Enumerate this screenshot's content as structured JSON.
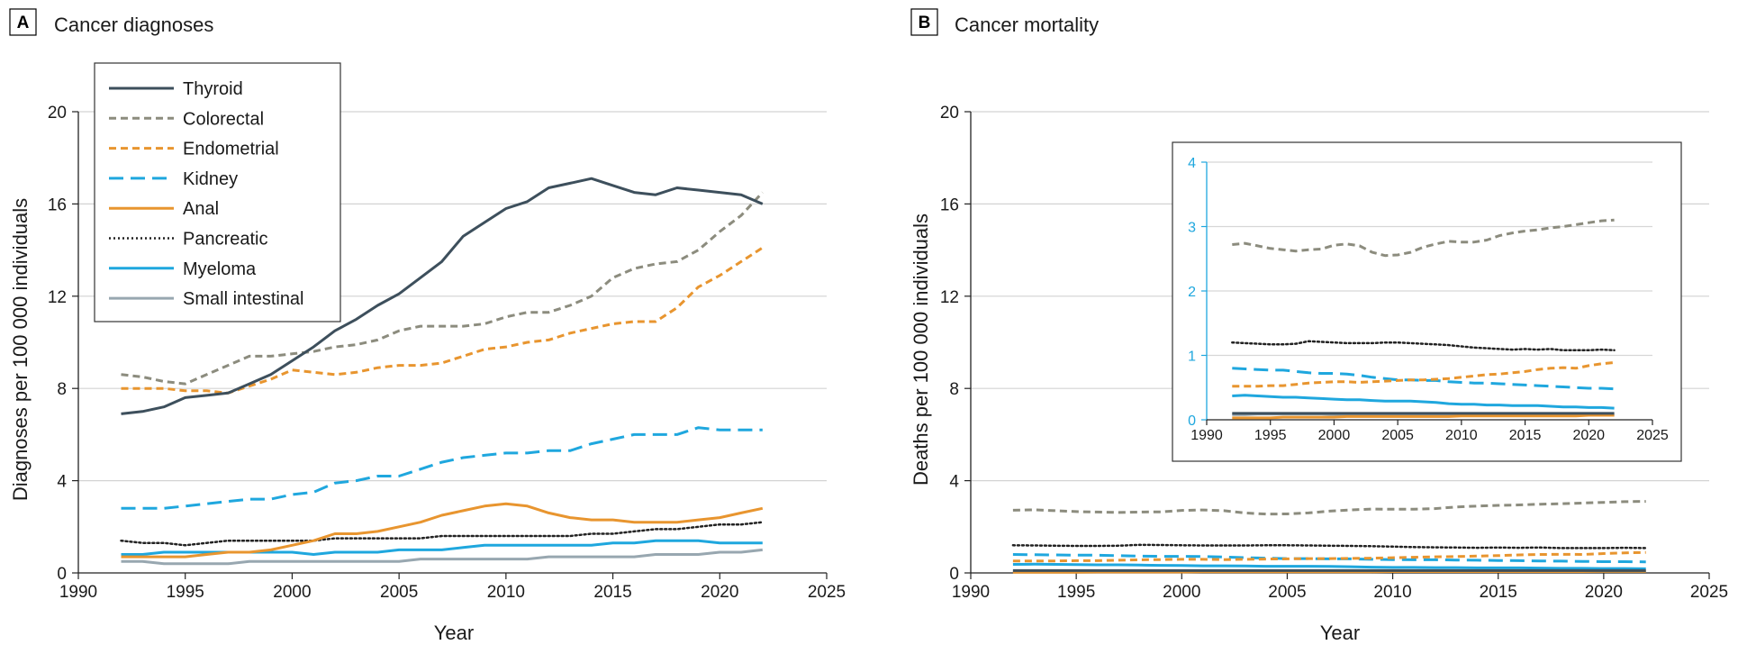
{
  "series_styles": [
    {
      "name": "Thyroid",
      "color": "#3d4f5c",
      "dash": "solid",
      "width": 3
    },
    {
      "name": "Colorectal",
      "color": "#8c8c7e",
      "dash": "dash",
      "width": 3
    },
    {
      "name": "Endometrial",
      "color": "#e8952f",
      "dash": "dash",
      "width": 3
    },
    {
      "name": "Kidney",
      "color": "#1fa7de",
      "dash": "longdash",
      "width": 3
    },
    {
      "name": "Anal",
      "color": "#e8952f",
      "dash": "solid",
      "width": 3
    },
    {
      "name": "Pancreatic",
      "color": "#222222",
      "dash": "dot",
      "width": 2.5
    },
    {
      "name": "Myeloma",
      "color": "#1fa7de",
      "dash": "solid",
      "width": 3
    },
    {
      "name": "Small intestinal",
      "color": "#98a7b0",
      "dash": "solid",
      "width": 3
    }
  ],
  "chart_data": [
    {
      "type": "line",
      "panel": "A",
      "title": "Cancer diagnoses",
      "xlabel": "Year",
      "ylabel": "Diagnoses per 100 000 individuals",
      "xlim": [
        1990,
        2025
      ],
      "ylim": [
        0,
        20
      ],
      "xticks": [
        1990,
        1995,
        2000,
        2005,
        2010,
        2015,
        2020,
        2025
      ],
      "yticks": [
        0,
        4,
        8,
        12,
        16,
        20
      ],
      "grid": "horizontal",
      "legend": "top-left",
      "x": [
        1992,
        1993,
        1994,
        1995,
        1996,
        1997,
        1998,
        1999,
        2000,
        2001,
        2002,
        2003,
        2004,
        2005,
        2006,
        2007,
        2008,
        2009,
        2010,
        2011,
        2012,
        2013,
        2014,
        2015,
        2016,
        2017,
        2018,
        2019,
        2020,
        2021,
        2022
      ],
      "series": [
        {
          "name": "Thyroid",
          "values": [
            6.9,
            7.0,
            7.2,
            7.6,
            7.7,
            7.8,
            8.2,
            8.6,
            9.2,
            9.8,
            10.5,
            11.0,
            11.6,
            12.1,
            12.8,
            13.5,
            14.6,
            15.2,
            15.8,
            16.1,
            16.7,
            16.9,
            17.1,
            16.8,
            16.5,
            16.4,
            16.7,
            16.6,
            16.5,
            16.4,
            16.0
          ]
        },
        {
          "name": "Colorectal",
          "values": [
            8.6,
            8.5,
            8.3,
            8.2,
            8.6,
            9.0,
            9.4,
            9.4,
            9.5,
            9.6,
            9.8,
            9.9,
            10.1,
            10.5,
            10.7,
            10.7,
            10.7,
            10.8,
            11.1,
            11.3,
            11.3,
            11.6,
            12.0,
            12.8,
            13.2,
            13.4,
            13.5,
            14.0,
            14.8,
            15.5,
            16.5
          ]
        },
        {
          "name": "Endometrial",
          "values": [
            8.0,
            8.0,
            8.0,
            7.9,
            7.9,
            7.8,
            8.1,
            8.4,
            8.8,
            8.7,
            8.6,
            8.7,
            8.9,
            9.0,
            9.0,
            9.1,
            9.4,
            9.7,
            9.8,
            10.0,
            10.1,
            10.4,
            10.6,
            10.8,
            10.9,
            10.9,
            11.5,
            12.4,
            12.9,
            13.5,
            14.1
          ]
        },
        {
          "name": "Kidney",
          "values": [
            2.8,
            2.8,
            2.8,
            2.9,
            3.0,
            3.1,
            3.2,
            3.2,
            3.4,
            3.5,
            3.9,
            4.0,
            4.2,
            4.2,
            4.5,
            4.8,
            5.0,
            5.1,
            5.2,
            5.2,
            5.3,
            5.3,
            5.6,
            5.8,
            6.0,
            6.0,
            6.0,
            6.3,
            6.2,
            6.2,
            6.2
          ]
        },
        {
          "name": "Anal",
          "values": [
            0.7,
            0.7,
            0.7,
            0.7,
            0.8,
            0.9,
            0.9,
            1.0,
            1.2,
            1.4,
            1.7,
            1.7,
            1.8,
            2.0,
            2.2,
            2.5,
            2.7,
            2.9,
            3.0,
            2.9,
            2.6,
            2.4,
            2.3,
            2.3,
            2.2,
            2.2,
            2.2,
            2.3,
            2.4,
            2.6,
            2.8
          ]
        },
        {
          "name": "Pancreatic",
          "values": [
            1.4,
            1.3,
            1.3,
            1.2,
            1.3,
            1.4,
            1.4,
            1.4,
            1.4,
            1.4,
            1.5,
            1.5,
            1.5,
            1.5,
            1.5,
            1.6,
            1.6,
            1.6,
            1.6,
            1.6,
            1.6,
            1.6,
            1.7,
            1.7,
            1.8,
            1.9,
            1.9,
            2.0,
            2.1,
            2.1,
            2.2
          ]
        },
        {
          "name": "Myeloma",
          "values": [
            0.8,
            0.8,
            0.9,
            0.9,
            0.9,
            0.9,
            0.9,
            0.9,
            0.9,
            0.8,
            0.9,
            0.9,
            0.9,
            1.0,
            1.0,
            1.0,
            1.1,
            1.2,
            1.2,
            1.2,
            1.2,
            1.2,
            1.2,
            1.3,
            1.3,
            1.4,
            1.4,
            1.4,
            1.3,
            1.3,
            1.3
          ]
        },
        {
          "name": "Small intestinal",
          "values": [
            0.5,
            0.5,
            0.4,
            0.4,
            0.4,
            0.4,
            0.5,
            0.5,
            0.5,
            0.5,
            0.5,
            0.5,
            0.5,
            0.5,
            0.6,
            0.6,
            0.6,
            0.6,
            0.6,
            0.6,
            0.7,
            0.7,
            0.7,
            0.7,
            0.7,
            0.8,
            0.8,
            0.8,
            0.9,
            0.9,
            1.0
          ]
        }
      ]
    },
    {
      "type": "line",
      "panel": "B",
      "title": "Cancer mortality",
      "xlabel": "Year",
      "ylabel": "Deaths per 100 000 individuals",
      "xlim": [
        1990,
        2025
      ],
      "ylim": [
        0,
        20
      ],
      "xticks": [
        1990,
        1995,
        2000,
        2005,
        2010,
        2015,
        2020,
        2025
      ],
      "yticks": [
        0,
        4,
        8,
        12,
        16,
        20
      ],
      "grid": "horizontal",
      "x": [
        1992,
        1993,
        1994,
        1995,
        1996,
        1997,
        1998,
        1999,
        2000,
        2001,
        2002,
        2003,
        2004,
        2005,
        2006,
        2007,
        2008,
        2009,
        2010,
        2011,
        2012,
        2013,
        2014,
        2015,
        2016,
        2017,
        2018,
        2019,
        2020,
        2021,
        2022
      ],
      "series": [
        {
          "name": "Thyroid",
          "values": [
            0.1,
            0.1,
            0.1,
            0.1,
            0.1,
            0.1,
            0.1,
            0.1,
            0.1,
            0.1,
            0.1,
            0.1,
            0.1,
            0.1,
            0.1,
            0.1,
            0.1,
            0.1,
            0.1,
            0.1,
            0.1,
            0.1,
            0.1,
            0.1,
            0.1,
            0.1,
            0.1,
            0.1,
            0.1,
            0.1,
            0.1
          ]
        },
        {
          "name": "Colorectal",
          "values": [
            2.72,
            2.74,
            2.7,
            2.66,
            2.64,
            2.62,
            2.64,
            2.65,
            2.71,
            2.73,
            2.7,
            2.6,
            2.55,
            2.56,
            2.6,
            2.68,
            2.73,
            2.77,
            2.76,
            2.76,
            2.79,
            2.86,
            2.9,
            2.93,
            2.95,
            2.98,
            3.0,
            3.03,
            3.06,
            3.09,
            3.1
          ]
        },
        {
          "name": "Endometrial",
          "values": [
            0.52,
            0.52,
            0.52,
            0.53,
            0.53,
            0.55,
            0.57,
            0.58,
            0.59,
            0.59,
            0.58,
            0.59,
            0.6,
            0.61,
            0.62,
            0.62,
            0.63,
            0.64,
            0.66,
            0.68,
            0.7,
            0.71,
            0.73,
            0.75,
            0.78,
            0.8,
            0.81,
            0.8,
            0.84,
            0.87,
            0.89
          ]
        },
        {
          "name": "Kidney",
          "values": [
            0.8,
            0.79,
            0.78,
            0.77,
            0.77,
            0.75,
            0.73,
            0.72,
            0.72,
            0.71,
            0.69,
            0.66,
            0.64,
            0.62,
            0.62,
            0.61,
            0.61,
            0.59,
            0.58,
            0.57,
            0.57,
            0.56,
            0.55,
            0.54,
            0.53,
            0.52,
            0.51,
            0.5,
            0.49,
            0.49,
            0.48
          ]
        },
        {
          "name": "Anal",
          "values": [
            0.03,
            0.03,
            0.03,
            0.03,
            0.04,
            0.04,
            0.04,
            0.04,
            0.04,
            0.05,
            0.05,
            0.05,
            0.05,
            0.05,
            0.05,
            0.05,
            0.05,
            0.05,
            0.06,
            0.06,
            0.06,
            0.06,
            0.06,
            0.06,
            0.06,
            0.06,
            0.06,
            0.06,
            0.07,
            0.07,
            0.07
          ]
        },
        {
          "name": "Pancreatic",
          "values": [
            1.2,
            1.19,
            1.18,
            1.17,
            1.17,
            1.18,
            1.22,
            1.21,
            1.2,
            1.19,
            1.19,
            1.19,
            1.2,
            1.2,
            1.19,
            1.18,
            1.17,
            1.16,
            1.14,
            1.12,
            1.11,
            1.1,
            1.09,
            1.1,
            1.09,
            1.1,
            1.08,
            1.08,
            1.08,
            1.09,
            1.08
          ]
        },
        {
          "name": "Myeloma",
          "values": [
            0.37,
            0.38,
            0.37,
            0.36,
            0.35,
            0.35,
            0.34,
            0.33,
            0.32,
            0.31,
            0.31,
            0.3,
            0.29,
            0.29,
            0.29,
            0.28,
            0.27,
            0.25,
            0.24,
            0.24,
            0.23,
            0.23,
            0.22,
            0.22,
            0.22,
            0.21,
            0.2,
            0.2,
            0.19,
            0.19,
            0.18
          ]
        },
        {
          "name": "Small intestinal",
          "values": [
            0.08,
            0.08,
            0.09,
            0.09,
            0.09,
            0.09,
            0.09,
            0.09,
            0.08,
            0.08,
            0.08,
            0.08,
            0.08,
            0.08,
            0.08,
            0.08,
            0.08,
            0.08,
            0.08,
            0.07,
            0.07,
            0.07,
            0.07,
            0.07,
            0.07,
            0.07,
            0.07,
            0.07,
            0.07,
            0.07,
            0.07
          ]
        }
      ],
      "inset": {
        "xlim": [
          1990,
          2025
        ],
        "ylim": [
          0,
          4
        ],
        "xticks": [
          1990,
          1995,
          2000,
          2005,
          2010,
          2015,
          2020,
          2025
        ],
        "yticks": [
          0,
          1,
          2,
          3,
          4
        ],
        "grid": "horizontal"
      }
    }
  ]
}
